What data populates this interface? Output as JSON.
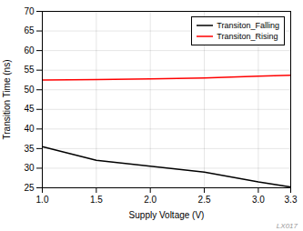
{
  "chart_data": {
    "type": "line",
    "xlabel": "Supply Voltage (V)",
    "ylabel": "Transition Time (ns)",
    "x": [
      1.0,
      1.5,
      2.0,
      2.5,
      3.0,
      3.3
    ],
    "series": [
      {
        "name": "Transiton_Falling",
        "color": "#000000",
        "values": [
          35.5,
          32.0,
          30.5,
          29.0,
          26.5,
          25.2
        ]
      },
      {
        "name": "Transiton_Rising",
        "color": "#ff0000",
        "values": [
          52.5,
          52.6,
          52.8,
          53.0,
          53.5,
          53.7
        ]
      }
    ],
    "xlim": [
      1,
      3.3
    ],
    "ylim": [
      25,
      70
    ],
    "xticks": [
      {
        "value": 1,
        "label": "1.0"
      },
      1.5,
      {
        "value": 2,
        "label": "2.0"
      },
      2.5,
      {
        "value": 3,
        "label": "3.0"
      },
      3.3
    ],
    "yticks": [
      25,
      30,
      35,
      40,
      45,
      50,
      55,
      60,
      65,
      70
    ],
    "grid": true,
    "legend": "upper right",
    "annotations": [
      "LX017"
    ]
  }
}
